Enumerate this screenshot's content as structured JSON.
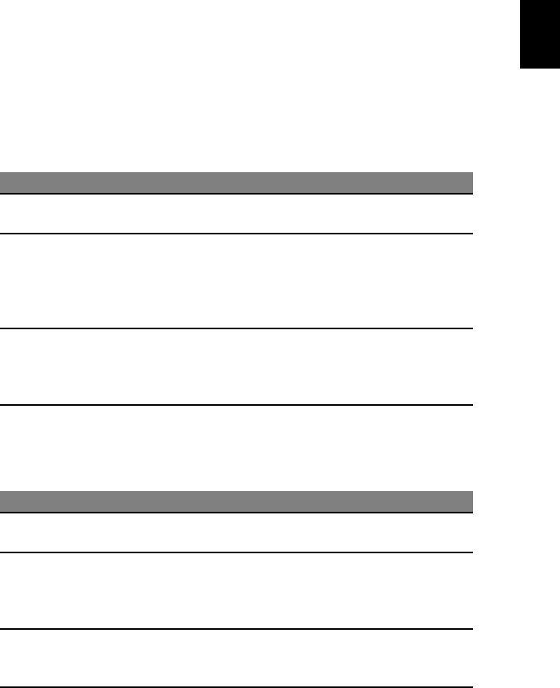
{
  "colors": {
    "header_band": "#808080",
    "tab": "#000000"
  },
  "tables": [
    {
      "rows": []
    },
    {
      "rows": []
    }
  ]
}
